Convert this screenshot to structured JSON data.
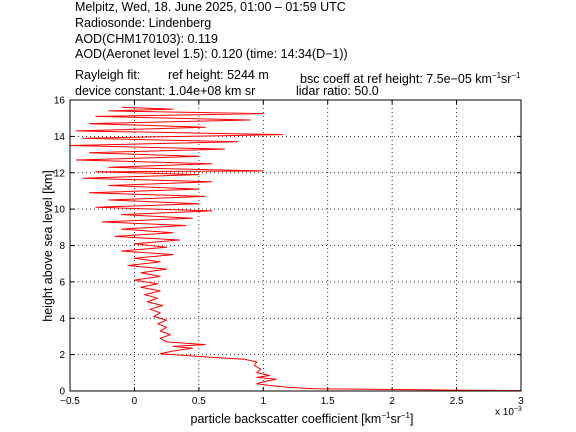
{
  "header": {
    "line1": "Melpitz, Wed, 18. June 2025, 01:00 – 01:59 UTC",
    "line2": "Radiosonde: Lindenberg",
    "line3": "AOD(CHM170103): 0.119",
    "line4": "AOD(Aeronet level 1.5): 0.120   (time: 14:34(D−1))",
    "rayleigh_fit": "Rayleigh fit:",
    "ref_height": "ref height: 5244 m",
    "bsc_coeff_prefix": "bsc coeff at ref height: 7.5e−05 km",
    "bsc_sup1": "−1",
    "bsc_mid": "sr",
    "bsc_sup2": "−1",
    "device_constant": "device constant: 1.04e+08 km sr",
    "lidar_ratio": "lidar ratio: 50.0"
  },
  "chart_data": {
    "type": "line",
    "xlabel_prefix": "particle backscatter coefficient [km",
    "xlabel_sup1": "−1",
    "xlabel_mid": "sr",
    "xlabel_sup2": "−1",
    "xlabel_suffix": "]",
    "ylabel": "height above sea level [km]",
    "x_multiplier": "x 10",
    "x_multiplier_exp": "−3",
    "xlim": [
      -0.5,
      3.0
    ],
    "ylim": [
      0,
      16
    ],
    "xticks": [
      "−0.5",
      "0",
      "0.5",
      "1",
      "1.5",
      "2",
      "2.5",
      "3"
    ],
    "xtick_values": [
      -0.5,
      0,
      0.5,
      1.0,
      1.5,
      2.0,
      2.5,
      3.0
    ],
    "yticks": [
      "0",
      "2",
      "4",
      "6",
      "8",
      "10",
      "12",
      "14",
      "16"
    ],
    "ytick_values": [
      0,
      2,
      4,
      6,
      8,
      10,
      12,
      14,
      16
    ],
    "grid": true,
    "grid_style": "dotted",
    "series": [
      {
        "color": "#ff0000",
        "points": [
          [
            3.0,
            0.02
          ],
          [
            2.6,
            0.04
          ],
          [
            2.0,
            0.08
          ],
          [
            1.4,
            0.12
          ],
          [
            1.2,
            0.2
          ],
          [
            1.05,
            0.3
          ],
          [
            0.95,
            0.4
          ],
          [
            1.0,
            0.5
          ],
          [
            1.1,
            0.65
          ],
          [
            0.95,
            0.75
          ],
          [
            1.05,
            0.85
          ],
          [
            0.95,
            1.0
          ],
          [
            0.98,
            1.2
          ],
          [
            0.93,
            1.4
          ],
          [
            0.95,
            1.6
          ],
          [
            0.85,
            1.75
          ],
          [
            0.6,
            1.85
          ],
          [
            0.4,
            1.95
          ],
          [
            0.2,
            2.05
          ],
          [
            0.3,
            2.2
          ],
          [
            0.45,
            2.35
          ],
          [
            0.3,
            2.45
          ],
          [
            0.55,
            2.55
          ],
          [
            0.25,
            2.7
          ],
          [
            0.2,
            2.9
          ],
          [
            0.28,
            3.1
          ],
          [
            0.2,
            3.3
          ],
          [
            0.25,
            3.5
          ],
          [
            0.18,
            3.7
          ],
          [
            0.25,
            3.9
          ],
          [
            0.15,
            4.1
          ],
          [
            0.2,
            4.3
          ],
          [
            0.12,
            4.5
          ],
          [
            0.22,
            4.7
          ],
          [
            0.1,
            4.9
          ],
          [
            0.18,
            5.1
          ],
          [
            0.08,
            5.3
          ],
          [
            0.2,
            5.5
          ],
          [
            0.05,
            5.7
          ],
          [
            0.18,
            5.9
          ],
          [
            0.0,
            6.1
          ],
          [
            0.2,
            6.3
          ],
          [
            0.05,
            6.5
          ],
          [
            0.25,
            6.7
          ],
          [
            -0.05,
            6.9
          ],
          [
            0.2,
            7.1
          ],
          [
            0.0,
            7.3
          ],
          [
            0.3,
            7.5
          ],
          [
            -0.1,
            7.7
          ],
          [
            0.25,
            7.9
          ],
          [
            0.0,
            8.1
          ],
          [
            0.35,
            8.3
          ],
          [
            -0.15,
            8.5
          ],
          [
            0.3,
            8.7
          ],
          [
            -0.1,
            8.9
          ],
          [
            0.4,
            9.1
          ],
          [
            -0.25,
            9.3
          ],
          [
            0.45,
            9.5
          ],
          [
            -0.1,
            9.7
          ],
          [
            0.6,
            9.9
          ],
          [
            -0.3,
            10.1
          ],
          [
            0.5,
            10.3
          ],
          [
            -0.2,
            10.5
          ],
          [
            0.55,
            10.7
          ],
          [
            -0.35,
            10.9
          ],
          [
            0.5,
            11.1
          ],
          [
            -0.2,
            11.3
          ],
          [
            0.6,
            11.5
          ],
          [
            -0.4,
            11.7
          ],
          [
            0.5,
            11.9
          ],
          [
            -0.3,
            12.05
          ],
          [
            1.0,
            12.1
          ],
          [
            -0.2,
            12.3
          ],
          [
            0.6,
            12.5
          ],
          [
            -0.45,
            12.7
          ],
          [
            0.5,
            12.9
          ],
          [
            -0.35,
            13.1
          ],
          [
            0.7,
            13.3
          ],
          [
            -0.5,
            13.5
          ],
          [
            0.8,
            13.7
          ],
          [
            -0.4,
            13.9
          ],
          [
            1.15,
            14.1
          ],
          [
            -0.45,
            14.3
          ],
          [
            0.55,
            14.5
          ],
          [
            -0.35,
            14.7
          ],
          [
            0.9,
            14.9
          ],
          [
            -0.3,
            15.1
          ],
          [
            1.0,
            15.25
          ],
          [
            -0.2,
            15.4
          ],
          [
            0.3,
            15.5
          ],
          [
            -0.1,
            15.6
          ]
        ]
      }
    ]
  }
}
